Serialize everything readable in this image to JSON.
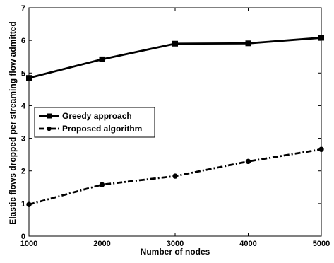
{
  "chart_data": {
    "type": "line",
    "title": "",
    "xlabel": "Number of nodes",
    "ylabel": "Elastic flows dropped per streaming flow admitted",
    "x": [
      1000,
      2000,
      3000,
      4000,
      5000
    ],
    "xlim": [
      1000,
      5000
    ],
    "ylim": [
      0,
      7
    ],
    "x_ticks": [
      "1000",
      "2000",
      "3000",
      "4000",
      "5000"
    ],
    "y_ticks": [
      "0",
      "1",
      "2",
      "3",
      "4",
      "5",
      "6",
      "7"
    ],
    "grid": false,
    "legend_position": "center-left",
    "series": [
      {
        "name": "Greedy approach",
        "values": [
          4.85,
          5.42,
          5.9,
          5.91,
          6.08
        ],
        "line_style": "solid",
        "marker": "square",
        "color": "#000000"
      },
      {
        "name": "Proposed algorithm",
        "values": [
          0.97,
          1.58,
          1.84,
          2.29,
          2.66
        ],
        "line_style": "dash-dot",
        "marker": "circle",
        "color": "#000000"
      }
    ]
  }
}
